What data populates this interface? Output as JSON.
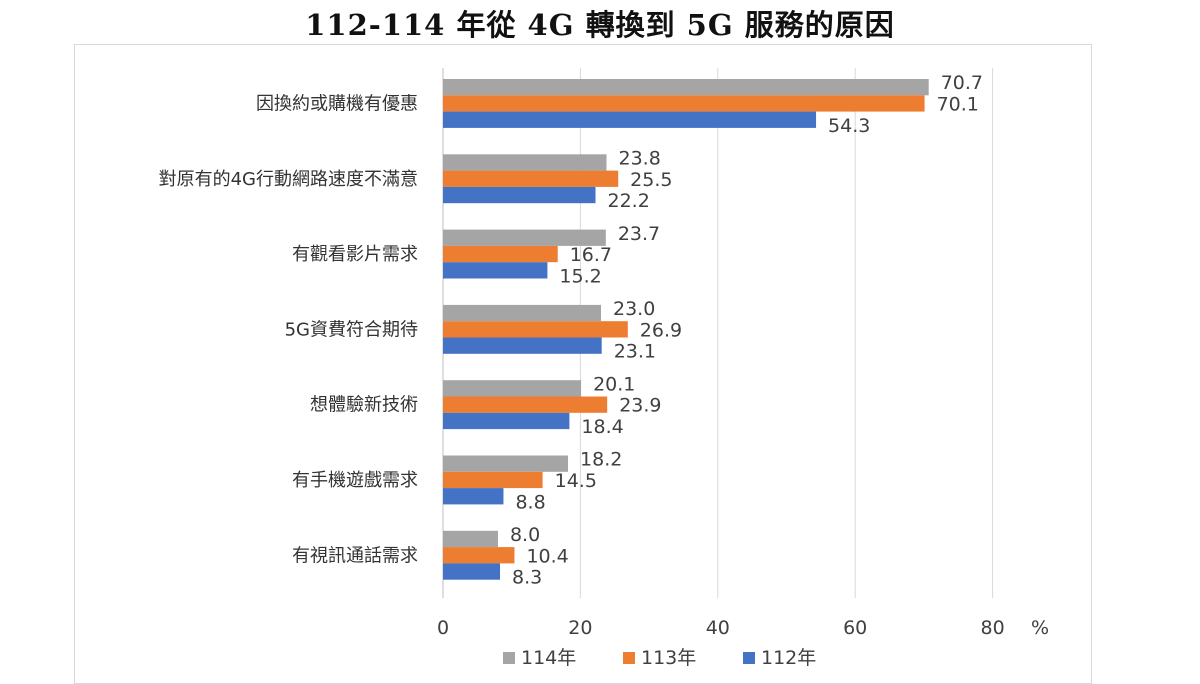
{
  "title": "112-114 年從 4G 轉換到 5G 服務的原因",
  "chart_data": {
    "type": "bar",
    "orientation": "horizontal",
    "categories": [
      "因換約或購機有優惠",
      "對原有的4G行動網路速度不滿意",
      "有觀看影片需求",
      "5G資費符合期待",
      "想體驗新技術",
      "有手機遊戲需求",
      "有視訊通話需求"
    ],
    "series": [
      {
        "name": "114年",
        "color": "#a5a5a5",
        "values": [
          70.7,
          23.8,
          23.7,
          23.0,
          20.1,
          18.2,
          8.0
        ]
      },
      {
        "name": "113年",
        "color": "#ed7d31",
        "values": [
          70.1,
          25.5,
          16.7,
          26.9,
          23.9,
          14.5,
          10.4
        ]
      },
      {
        "name": "112年",
        "color": "#4472c4",
        "values": [
          54.3,
          22.2,
          15.2,
          23.1,
          18.4,
          8.8,
          8.3
        ]
      }
    ],
    "value_labels": [
      [
        "70.7",
        "23.8",
        "23.7",
        "23.0",
        "20.1",
        "18.2",
        "8.0"
      ],
      [
        "70.1",
        "25.5",
        "16.7",
        "26.9",
        "23.9",
        "14.5",
        "10.4"
      ],
      [
        "54.3",
        "22.2",
        "15.2",
        "23.1",
        "18.4",
        "8.8",
        "8.3"
      ]
    ],
    "xlim": [
      0,
      80
    ],
    "xticks": [
      "0",
      "20",
      "40",
      "60",
      "80"
    ],
    "unit_label": "%",
    "grid": true,
    "legend": "bottom"
  }
}
